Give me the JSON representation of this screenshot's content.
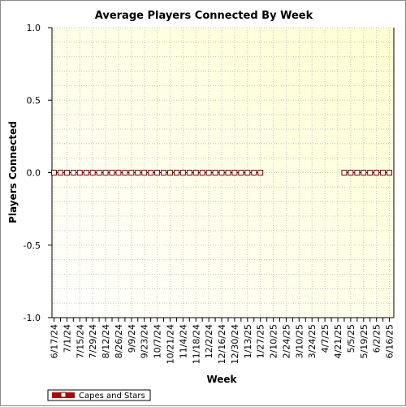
{
  "chart_data": {
    "type": "line",
    "title": "Average Players Connected By Week",
    "xlabel": "Week",
    "ylabel": "Players Connected",
    "ylim": [
      -1.0,
      1.0
    ],
    "yticks": [
      "1.0",
      "0.5",
      "0.0",
      "-0.5",
      "-1.0"
    ],
    "x": [
      "6/17/24",
      "6/24/24",
      "7/1/24",
      "7/8/24",
      "7/15/24",
      "7/22/24",
      "7/29/24",
      "8/5/24",
      "8/12/24",
      "8/19/24",
      "8/26/24",
      "9/2/24",
      "9/9/24",
      "9/16/24",
      "9/23/24",
      "9/30/24",
      "10/7/24",
      "10/14/24",
      "10/21/24",
      "10/28/24",
      "11/4/24",
      "11/11/24",
      "11/18/24",
      "11/25/24",
      "12/2/24",
      "12/9/24",
      "12/16/24",
      "12/23/24",
      "12/30/24",
      "1/6/25",
      "1/13/25",
      "1/20/25",
      "1/27/25",
      "2/3/25",
      "2/10/25",
      "2/17/25",
      "2/24/25",
      "3/3/25",
      "3/10/25",
      "3/17/25",
      "3/24/25",
      "3/31/25",
      "4/7/25",
      "4/14/25",
      "4/21/25",
      "4/28/25",
      "5/5/25",
      "5/12/25",
      "5/19/25",
      "5/26/25",
      "6/2/25",
      "6/9/25",
      "6/16/25"
    ],
    "xtick_labels": [
      "6/17/24",
      "7/1/24",
      "7/15/24",
      "7/29/24",
      "8/12/24",
      "8/26/24",
      "9/9/24",
      "9/23/24",
      "10/7/24",
      "10/21/24",
      "11/4/24",
      "11/18/24",
      "12/2/24",
      "12/16/24",
      "12/30/24",
      "1/13/25",
      "1/27/25",
      "2/10/25",
      "2/24/25",
      "3/10/25",
      "3/24/25",
      "4/7/25",
      "4/21/25",
      "5/5/25",
      "5/19/25",
      "6/2/25",
      "6/16/25"
    ],
    "series": [
      {
        "name": "Capes and Stars",
        "color": "#b30000",
        "values": [
          0,
          0,
          0,
          0,
          0,
          0,
          0,
          0,
          0,
          0,
          0,
          0,
          0,
          0,
          0,
          0,
          0,
          0,
          0,
          0,
          0,
          0,
          0,
          0,
          0,
          0,
          0,
          0,
          0,
          0,
          0,
          0,
          0,
          null,
          null,
          null,
          null,
          null,
          null,
          null,
          null,
          null,
          null,
          null,
          null,
          0,
          0,
          0,
          0,
          0,
          0,
          0,
          0
        ]
      }
    ],
    "grid": true,
    "legend": "bottom-left"
  }
}
